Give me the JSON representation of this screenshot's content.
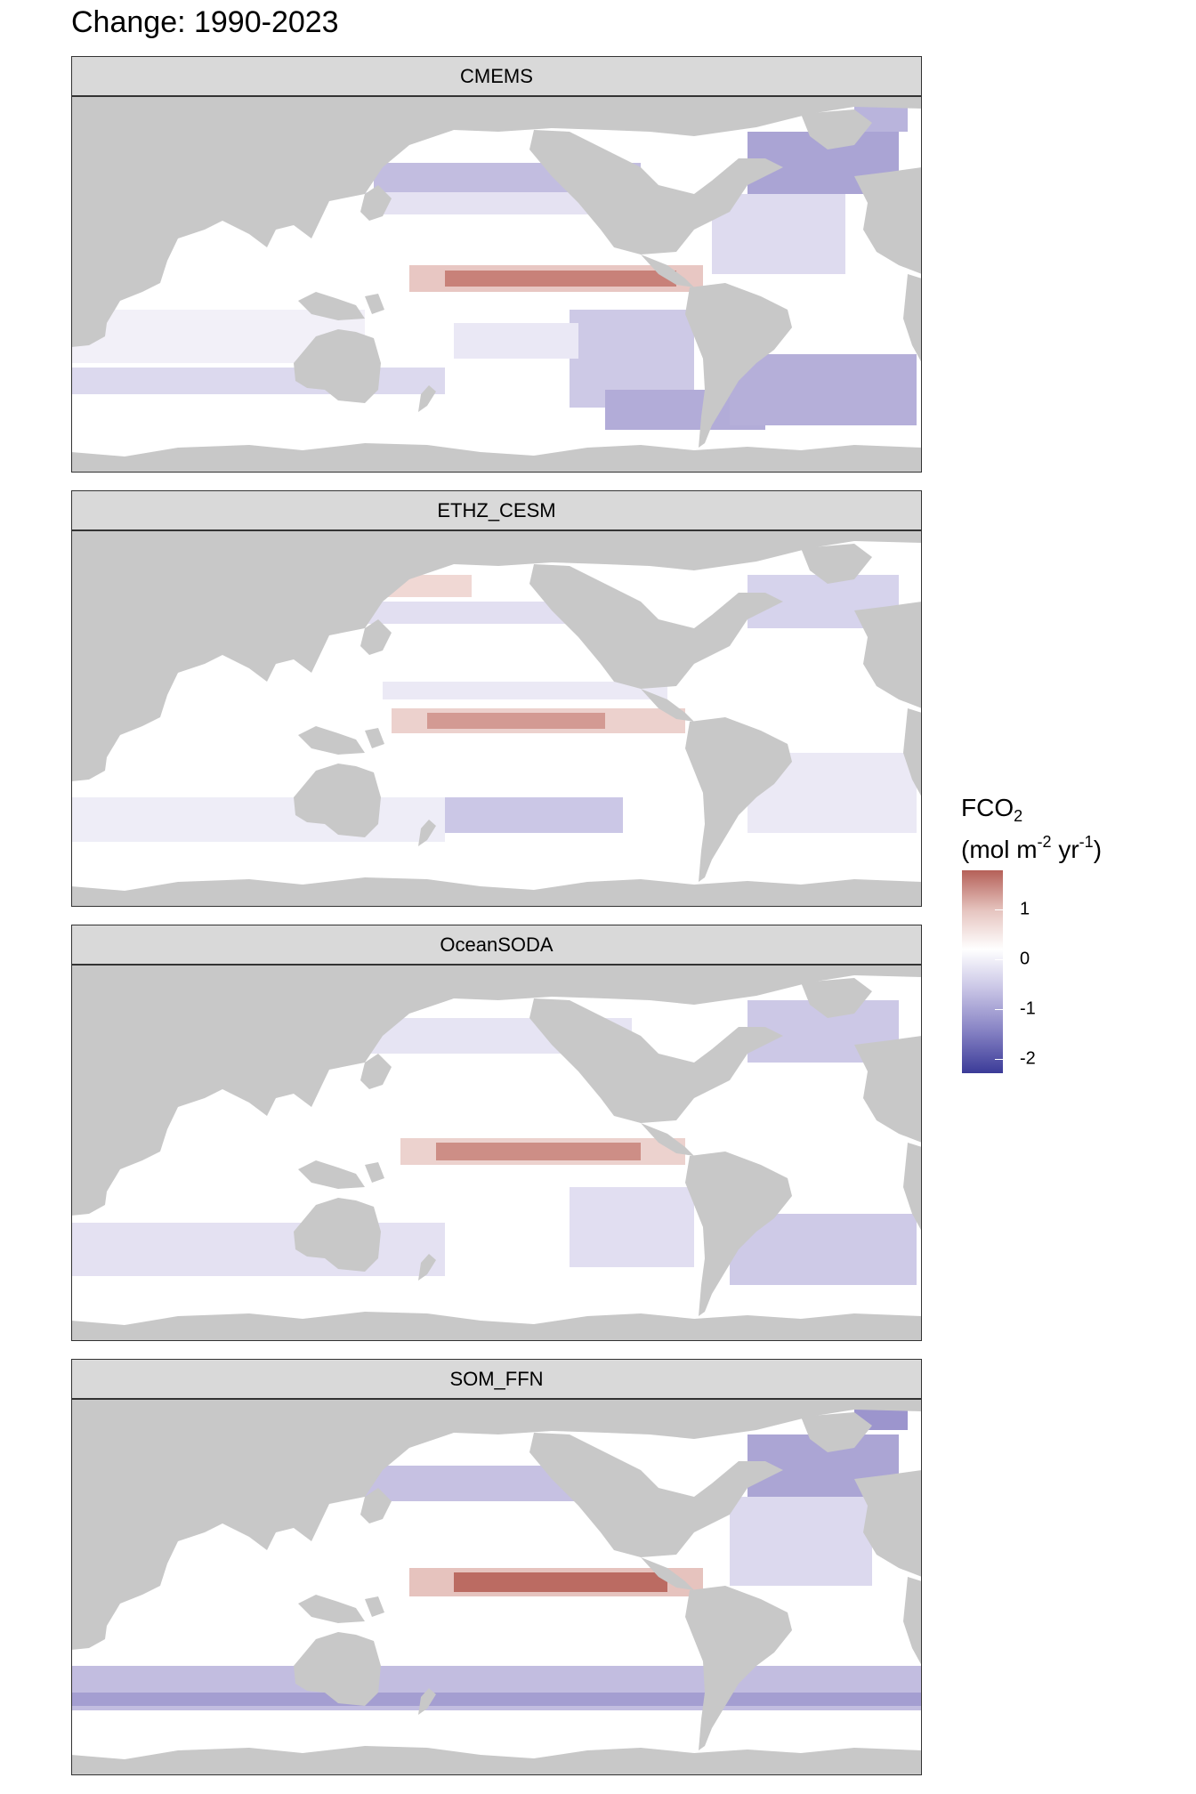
{
  "title": "Change:  1990-2023",
  "panels": [
    {
      "label": "CMEMS"
    },
    {
      "label": "ETHZ_CESM"
    },
    {
      "label": "OceanSODA"
    },
    {
      "label": "SOM_FFN"
    }
  ],
  "legend": {
    "title_line1": "FCO",
    "title_sub": "2",
    "title_line2_a": "(mol m",
    "title_sup1": "-2",
    "title_line2_b": " yr",
    "title_sup2": "-1",
    "title_line2_c": ")",
    "ticks": [
      "1",
      "0",
      "-1",
      "-2"
    ]
  },
  "colors": {
    "land": "#c8c8c8",
    "ocean": "#ffffff",
    "positive": "#b56058",
    "negative": "#3b3b98",
    "strip": "#d9d9d9"
  }
}
